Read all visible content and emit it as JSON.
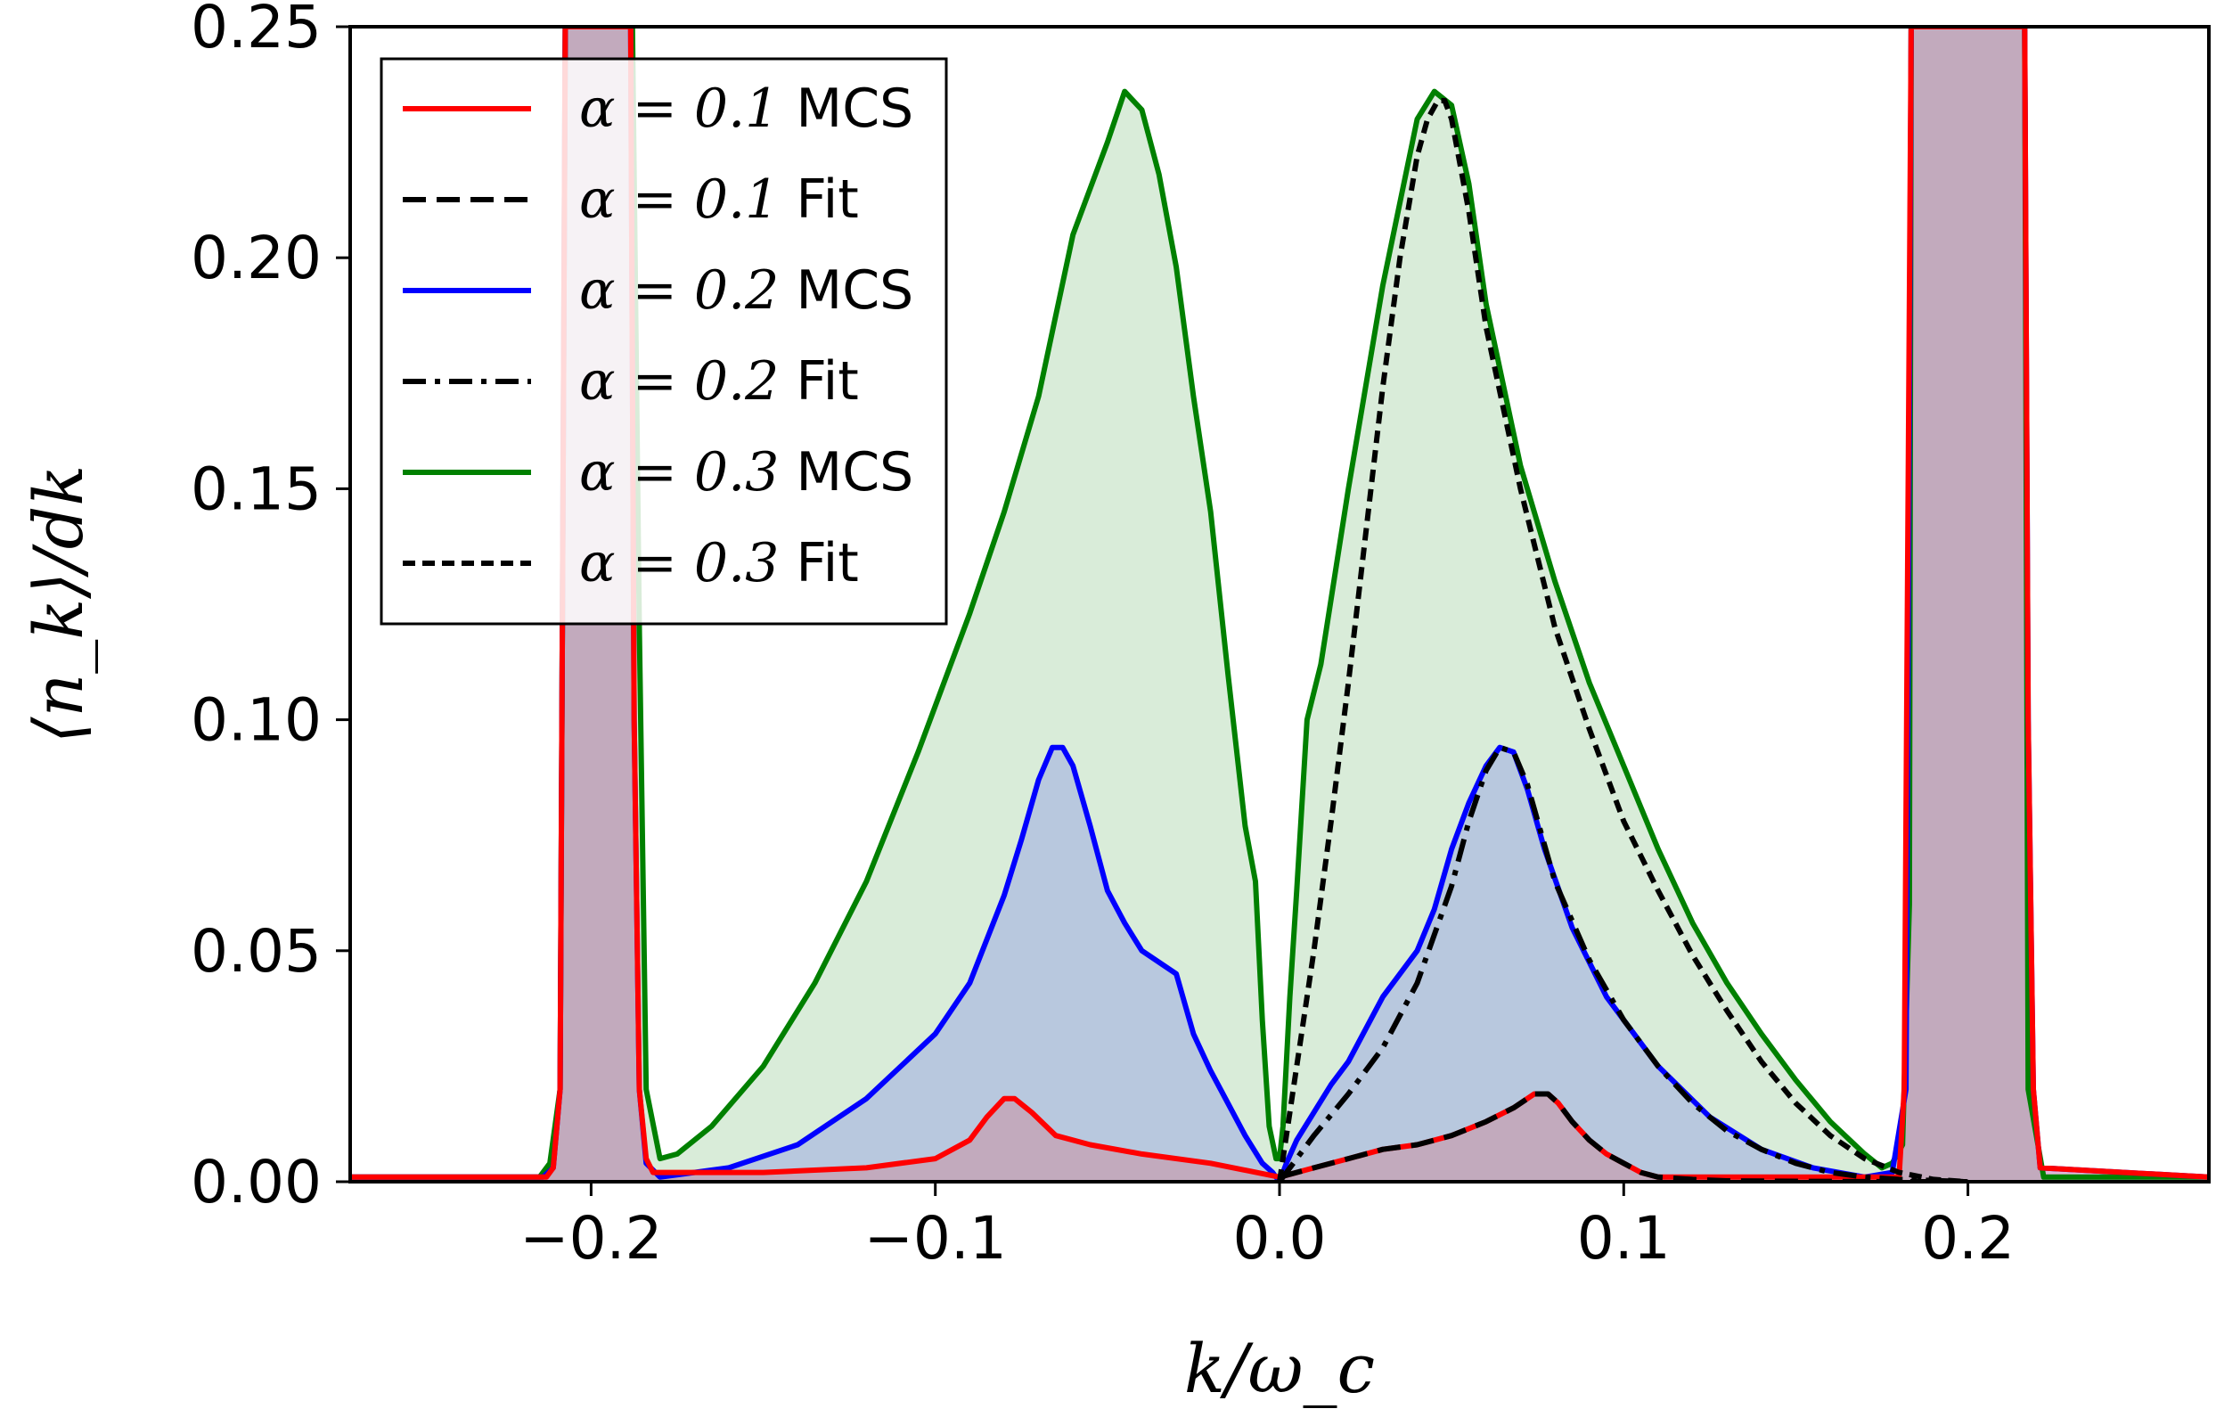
{
  "chart_data": {
    "type": "line",
    "title": "",
    "xlabel": "k/ω_c",
    "ylabel": "⟨n_k⟩/dk",
    "xlim": [
      -0.27,
      0.27
    ],
    "ylim": [
      0.0,
      0.25
    ],
    "x_ticks": [
      -0.2,
      -0.1,
      0.0,
      0.1,
      0.2
    ],
    "x_tick_labels": [
      "−0.2",
      "−0.1",
      "0.0",
      "0.1",
      "0.2"
    ],
    "y_ticks": [
      0.0,
      0.05,
      0.1,
      0.15,
      0.2,
      0.25
    ],
    "y_tick_labels": [
      "0.00",
      "0.05",
      "0.10",
      "0.15",
      "0.20",
      "0.25"
    ],
    "grid": false,
    "legend_position": "top-left",
    "legend": [
      {
        "math": "α = 0.1",
        "suffix": "MCS",
        "color": "#ff0000",
        "dash": "solid",
        "series": "a01_mcs"
      },
      {
        "math": "α = 0.1",
        "suffix": "Fit",
        "color": "#000000",
        "dash": "dashed",
        "series": "a01_fit"
      },
      {
        "math": "α = 0.2",
        "suffix": "MCS",
        "color": "#0000ff",
        "dash": "solid",
        "series": "a02_mcs"
      },
      {
        "math": "α = 0.2",
        "suffix": "Fit",
        "color": "#000000",
        "dash": "dashdot",
        "series": "a02_fit"
      },
      {
        "math": "α = 0.3",
        "suffix": "MCS",
        "color": "#008000",
        "dash": "solid",
        "series": "a03_mcs"
      },
      {
        "math": "α = 0.3",
        "suffix": "Fit",
        "color": "#000000",
        "dash": "dotted",
        "series": "a03_fit"
      }
    ],
    "series": [
      {
        "name": "a03_mcs",
        "label": "α = 0.3 MCS",
        "color": "#008000",
        "fill": "rgba(0,128,0,0.15)",
        "x": [
          -0.27,
          -0.215,
          -0.212,
          -0.209,
          -0.2075,
          -0.196,
          -0.188,
          -0.186,
          -0.184,
          -0.18,
          -0.175,
          -0.165,
          -0.15,
          -0.135,
          -0.12,
          -0.105,
          -0.09,
          -0.08,
          -0.07,
          -0.06,
          -0.05,
          -0.045,
          -0.04,
          -0.035,
          -0.03,
          -0.025,
          -0.02,
          -0.015,
          -0.01,
          -0.007,
          -0.005,
          -0.003,
          -0.001,
          0.0,
          0.001,
          0.003,
          0.005,
          0.008,
          0.012,
          0.02,
          0.03,
          0.04,
          0.045,
          0.05,
          0.055,
          0.06,
          0.07,
          0.08,
          0.09,
          0.1,
          0.11,
          0.12,
          0.13,
          0.14,
          0.15,
          0.16,
          0.17,
          0.175,
          0.178,
          0.181,
          0.183,
          0.1835,
          0.2,
          0.2165,
          0.2175,
          0.222,
          0.27
        ],
        "y": [
          0.001,
          0.001,
          0.004,
          0.02,
          0.25,
          0.25,
          0.25,
          0.12,
          0.02,
          0.005,
          0.006,
          0.012,
          0.025,
          0.043,
          0.065,
          0.093,
          0.123,
          0.145,
          0.17,
          0.205,
          0.225,
          0.236,
          0.232,
          0.218,
          0.198,
          0.17,
          0.145,
          0.11,
          0.077,
          0.065,
          0.035,
          0.012,
          0.005,
          0.005,
          0.012,
          0.04,
          0.063,
          0.1,
          0.112,
          0.15,
          0.194,
          0.23,
          0.236,
          0.233,
          0.216,
          0.19,
          0.155,
          0.13,
          0.108,
          0.09,
          0.072,
          0.056,
          0.043,
          0.032,
          0.022,
          0.013,
          0.006,
          0.003,
          0.004,
          0.008,
          0.06,
          0.25,
          0.25,
          0.25,
          0.02,
          0.001,
          0.001
        ]
      },
      {
        "name": "a02_mcs",
        "label": "α = 0.2 MCS",
        "color": "#0000ff",
        "fill": "rgba(0,0,255,0.15)",
        "x": [
          -0.27,
          -0.214,
          -0.211,
          -0.209,
          -0.2075,
          -0.196,
          -0.1885,
          -0.1875,
          -0.186,
          -0.184,
          -0.18,
          -0.16,
          -0.14,
          -0.12,
          -0.1,
          -0.09,
          -0.08,
          -0.075,
          -0.07,
          -0.066,
          -0.063,
          -0.06,
          -0.055,
          -0.05,
          -0.045,
          -0.04,
          -0.03,
          -0.025,
          -0.02,
          -0.015,
          -0.01,
          -0.005,
          -0.002,
          0.0,
          0.002,
          0.005,
          0.01,
          0.015,
          0.02,
          0.025,
          0.03,
          0.035,
          0.04,
          0.045,
          0.05,
          0.055,
          0.06,
          0.064,
          0.068,
          0.072,
          0.077,
          0.085,
          0.095,
          0.11,
          0.125,
          0.14,
          0.155,
          0.17,
          0.178,
          0.182,
          0.1835,
          0.2,
          0.2165,
          0.2175,
          0.219,
          0.221,
          0.27
        ],
        "y": [
          0.001,
          0.001,
          0.003,
          0.02,
          0.25,
          0.25,
          0.25,
          0.1,
          0.02,
          0.004,
          0.001,
          0.003,
          0.008,
          0.018,
          0.032,
          0.043,
          0.062,
          0.074,
          0.087,
          0.094,
          0.094,
          0.09,
          0.077,
          0.063,
          0.056,
          0.05,
          0.045,
          0.032,
          0.024,
          0.017,
          0.01,
          0.004,
          0.002,
          0.0,
          0.004,
          0.009,
          0.015,
          0.021,
          0.026,
          0.033,
          0.04,
          0.045,
          0.05,
          0.059,
          0.072,
          0.082,
          0.09,
          0.094,
          0.093,
          0.085,
          0.072,
          0.055,
          0.04,
          0.025,
          0.014,
          0.007,
          0.003,
          0.001,
          0.002,
          0.02,
          0.25,
          0.25,
          0.25,
          0.1,
          0.02,
          0.003,
          0.001
        ]
      },
      {
        "name": "a01_mcs",
        "label": "α = 0.1 MCS",
        "color": "#ff0000",
        "fill": "rgba(255,0,0,0.15)",
        "x": [
          -0.27,
          -0.213,
          -0.211,
          -0.209,
          -0.2075,
          -0.196,
          -0.1885,
          -0.1875,
          -0.186,
          -0.184,
          -0.182,
          -0.15,
          -0.12,
          -0.1,
          -0.09,
          -0.085,
          -0.08,
          -0.077,
          -0.072,
          -0.065,
          -0.055,
          -0.04,
          -0.02,
          0.0,
          0.01,
          0.02,
          0.03,
          0.04,
          0.05,
          0.06,
          0.068,
          0.074,
          0.078,
          0.081,
          0.085,
          0.09,
          0.095,
          0.1,
          0.105,
          0.11,
          0.115,
          0.12,
          0.13,
          0.15,
          0.18,
          0.1815,
          0.1835,
          0.2,
          0.2165,
          0.2175,
          0.219,
          0.221,
          0.27
        ],
        "y": [
          0.001,
          0.001,
          0.003,
          0.02,
          0.25,
          0.25,
          0.25,
          0.1,
          0.02,
          0.005,
          0.002,
          0.002,
          0.003,
          0.005,
          0.009,
          0.014,
          0.018,
          0.018,
          0.015,
          0.01,
          0.008,
          0.006,
          0.004,
          0.001,
          0.003,
          0.005,
          0.007,
          0.008,
          0.01,
          0.013,
          0.016,
          0.019,
          0.019,
          0.017,
          0.013,
          0.009,
          0.006,
          0.004,
          0.002,
          0.001,
          0.001,
          0.001,
          0.001,
          0.001,
          0.001,
          0.02,
          0.25,
          0.25,
          0.25,
          0.1,
          0.02,
          0.003,
          0.001
        ]
      },
      {
        "name": "a01_fit",
        "label": "α = 0.1 Fit",
        "color": "#000000",
        "dash": "dashed",
        "fill": "none",
        "x": [
          0.0,
          0.01,
          0.02,
          0.03,
          0.04,
          0.05,
          0.06,
          0.068,
          0.074,
          0.078,
          0.081,
          0.085,
          0.09,
          0.095,
          0.1,
          0.105,
          0.11,
          0.12,
          0.13,
          0.15,
          0.18,
          0.2
        ],
        "y": [
          0.001,
          0.003,
          0.005,
          0.007,
          0.008,
          0.01,
          0.013,
          0.016,
          0.019,
          0.019,
          0.017,
          0.013,
          0.009,
          0.006,
          0.004,
          0.002,
          0.001,
          0.0005,
          0.0002,
          0.0001,
          0.0,
          0.0
        ]
      },
      {
        "name": "a02_fit",
        "label": "α = 0.2 Fit",
        "color": "#000000",
        "dash": "dashdot",
        "fill": "none",
        "x": [
          0.0,
          0.01,
          0.02,
          0.03,
          0.04,
          0.05,
          0.055,
          0.06,
          0.064,
          0.068,
          0.072,
          0.08,
          0.09,
          0.1,
          0.11,
          0.12,
          0.13,
          0.14,
          0.15,
          0.16,
          0.17,
          0.18,
          0.2
        ],
        "y": [
          0.0,
          0.01,
          0.019,
          0.029,
          0.043,
          0.064,
          0.078,
          0.089,
          0.094,
          0.093,
          0.086,
          0.065,
          0.048,
          0.035,
          0.025,
          0.017,
          0.011,
          0.007,
          0.004,
          0.002,
          0.001,
          0.0005,
          0.0
        ]
      },
      {
        "name": "a03_fit",
        "label": "α = 0.3 Fit",
        "color": "#000000",
        "dash": "dotted",
        "fill": "none",
        "x": [
          0.0,
          0.005,
          0.01,
          0.015,
          0.02,
          0.025,
          0.03,
          0.035,
          0.04,
          0.043,
          0.046,
          0.048,
          0.05,
          0.055,
          0.06,
          0.07,
          0.08,
          0.09,
          0.1,
          0.11,
          0.12,
          0.13,
          0.14,
          0.15,
          0.16,
          0.17,
          0.18,
          0.19,
          0.2
        ],
        "y": [
          0.0,
          0.025,
          0.05,
          0.078,
          0.108,
          0.14,
          0.172,
          0.2,
          0.222,
          0.23,
          0.234,
          0.234,
          0.23,
          0.21,
          0.185,
          0.15,
          0.12,
          0.098,
          0.078,
          0.063,
          0.049,
          0.037,
          0.026,
          0.017,
          0.01,
          0.005,
          0.002,
          0.0005,
          0.0
        ]
      }
    ]
  }
}
